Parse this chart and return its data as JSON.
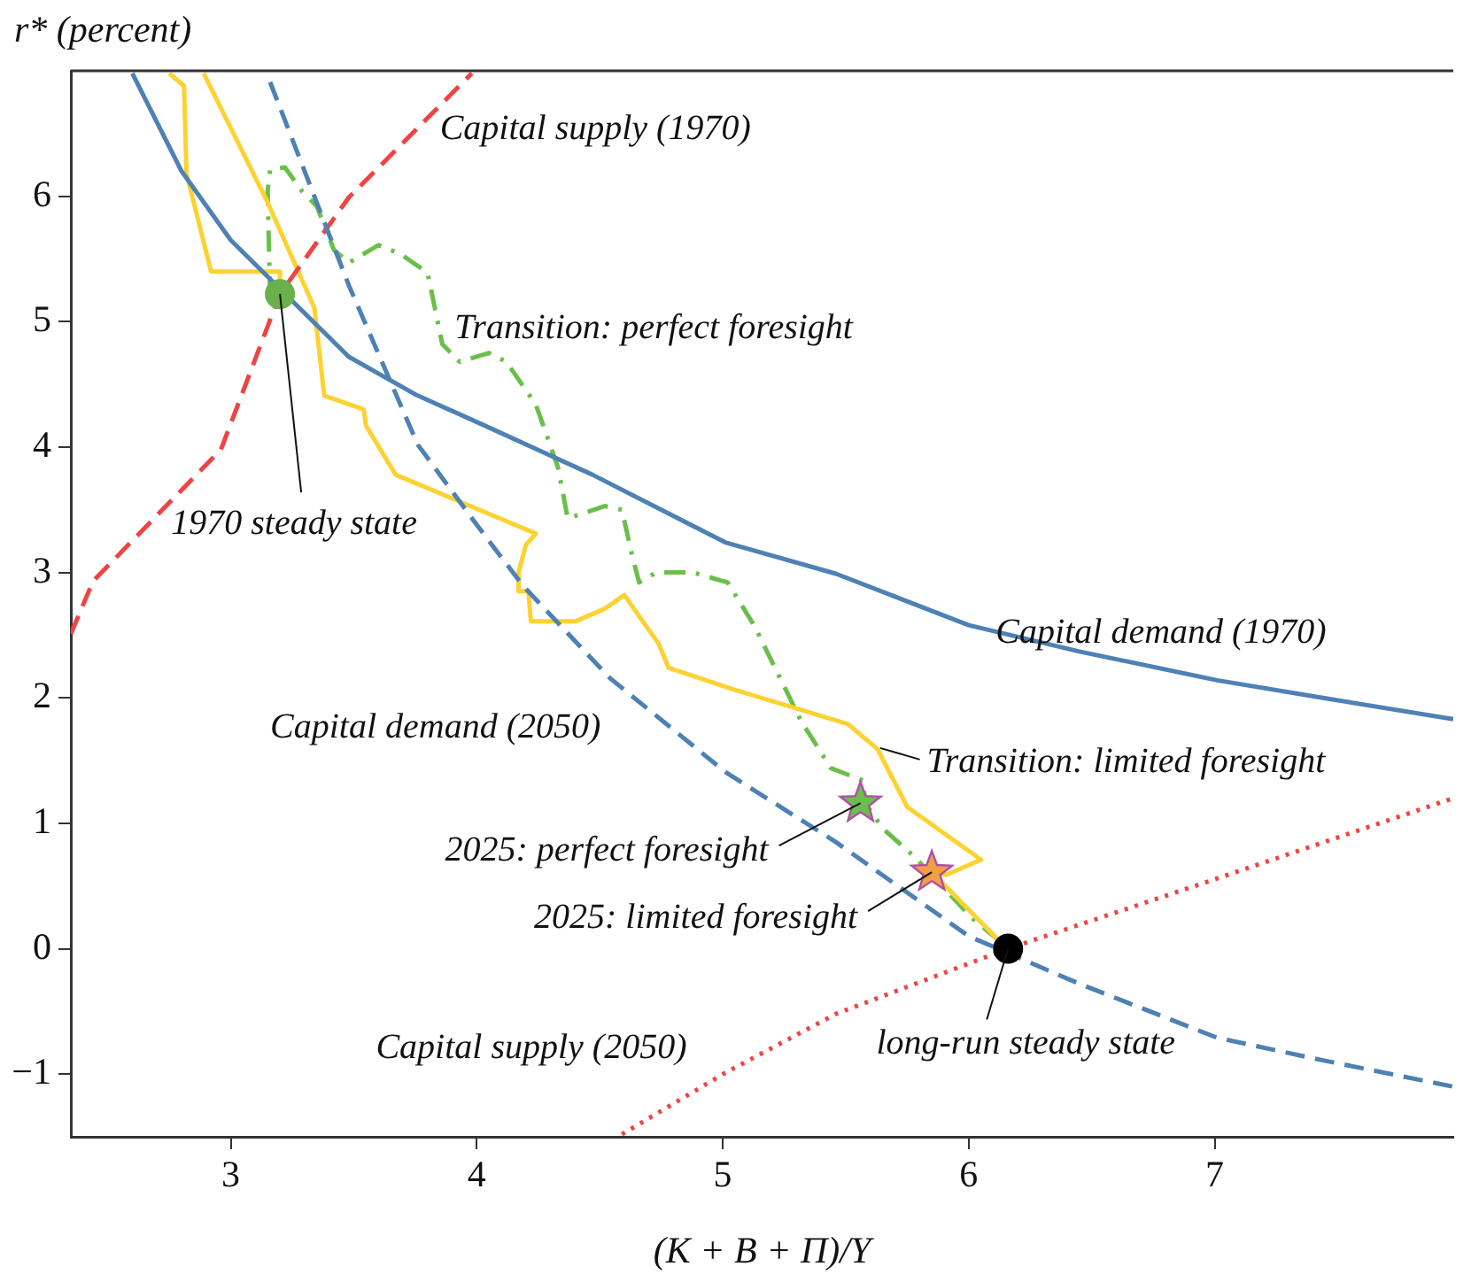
{
  "chart_data": {
    "type": "line",
    "xlabel": "(K + B + Π)/Y",
    "ylabel": "r* (percent)",
    "xlim": [
      2.35,
      7.97
    ],
    "ylim": [
      -1.5,
      7.0
    ],
    "xticks": [
      3,
      4,
      5,
      6,
      7
    ],
    "yticks": [
      -1,
      0,
      1,
      2,
      3,
      4,
      5,
      6
    ],
    "grid": false,
    "legend": false,
    "series": [
      {
        "name": "Capital demand (1970)",
        "type": "line",
        "color": "#4e81b4",
        "line_style": "solid",
        "marker": "none",
        "x": [
          2.6,
          2.8,
          3.0,
          3.48,
          3.75,
          4.0,
          4.47,
          5.01,
          5.46,
          6.0,
          6.45,
          7.01,
          7.44,
          7.97
        ],
        "values": [
          6.98,
          6.2,
          5.65,
          4.72,
          4.42,
          4.2,
          3.78,
          3.24,
          2.99,
          2.58,
          2.37,
          2.14,
          2.0,
          1.83
        ]
      },
      {
        "name": "Capital demand (2050)",
        "type": "line",
        "color": "#4e81b4",
        "line_style": "dashed",
        "marker": "none",
        "x": [
          3.16,
          3.48,
          3.76,
          4.0,
          4.19,
          4.54,
          5.01,
          5.46,
          6.0,
          6.45,
          7.01,
          7.44,
          7.97
        ],
        "values": [
          6.91,
          5.29,
          4.02,
          3.38,
          2.89,
          2.16,
          1.41,
          0.85,
          0.1,
          -0.28,
          -0.71,
          -0.89,
          -1.1
        ]
      },
      {
        "name": "Capital supply (1970)",
        "type": "line",
        "color": "#ee4444",
        "line_style": "dashed",
        "marker": "none",
        "x": [
          2.35,
          2.44,
          2.96,
          3.2,
          3.48,
          3.98
        ],
        "values": [
          2.51,
          2.93,
          3.98,
          5.22,
          5.99,
          6.98
        ]
      },
      {
        "name": "Capital supply (2050)",
        "type": "line",
        "color": "#ee4444",
        "line_style": "dotted",
        "marker": "none",
        "x": [
          4.59,
          5.01,
          5.46,
          6.16,
          7.01,
          7.97
        ],
        "values": [
          -1.48,
          -0.99,
          -0.52,
          0.0,
          0.56,
          1.2
        ]
      },
      {
        "name": "Transition: limited foresight",
        "type": "line",
        "color": "#fdd231",
        "line_style": "solid",
        "marker": "none",
        "x": [
          3.2,
          3.2,
          2.92,
          2.82,
          2.81,
          2.75,
          null,
          2.89,
          3.15,
          3.34,
          3.38,
          3.54,
          3.55,
          3.67,
          4.24,
          4.2,
          4.17,
          4.17,
          4.21,
          4.22,
          4.4,
          4.52,
          4.6,
          4.74,
          4.78,
          5.04,
          5.51,
          5.63,
          5.75,
          6.05,
          5.91,
          5.85,
          6.12,
          6.16
        ],
        "values": [
          5.29,
          5.4,
          5.4,
          6.18,
          6.88,
          6.98,
          null,
          6.98,
          5.95,
          5.11,
          4.41,
          4.3,
          4.17,
          3.78,
          3.31,
          3.22,
          3.0,
          2.85,
          2.85,
          2.61,
          2.61,
          2.71,
          2.82,
          2.43,
          2.24,
          2.07,
          1.79,
          1.59,
          1.13,
          0.71,
          0.59,
          0.61,
          0.07,
          0.0
        ]
      },
      {
        "name": "Transition: perfect foresight",
        "type": "line",
        "color": "#6abf4b",
        "line_style": "dashdot",
        "marker": "none",
        "x": [
          3.16,
          3.15,
          3.16,
          3.22,
          3.29,
          3.35,
          3.42,
          3.48,
          3.6,
          3.69,
          3.8,
          3.86,
          3.93,
          4.05,
          4.12,
          4.24,
          4.33,
          4.37,
          4.52,
          4.59,
          4.63,
          4.66,
          4.73,
          4.88,
          5.02,
          5.13,
          5.25,
          5.32,
          5.44,
          5.57,
          5.58,
          5.65,
          5.77,
          5.84,
          6.01,
          6.12,
          6.16
        ],
        "values": [
          5.19,
          6.04,
          6.21,
          6.23,
          6.04,
          5.92,
          5.57,
          5.47,
          5.61,
          5.54,
          5.39,
          4.82,
          4.68,
          4.75,
          4.68,
          4.34,
          3.84,
          3.43,
          3.53,
          3.5,
          3.15,
          2.92,
          3.0,
          3.0,
          2.92,
          2.57,
          2.09,
          1.81,
          1.44,
          1.34,
          1.16,
          0.96,
          0.75,
          0.61,
          0.25,
          0.07,
          0.0
        ]
      },
      {
        "type": "scatter",
        "color": "#6ab04c",
        "marker": "circle",
        "x": [
          3.2
        ],
        "values": [
          5.22
        ]
      },
      {
        "type": "scatter",
        "color": "#6abf4b",
        "marker": "star",
        "x": [
          5.56
        ],
        "values": [
          1.16
        ]
      },
      {
        "type": "scatter",
        "color": "#f0a040",
        "marker": "star",
        "x": [
          5.85
        ],
        "values": [
          0.61
        ]
      },
      {
        "type": "scatter",
        "color": "#000000",
        "marker": "circle",
        "x": [
          6.16
        ],
        "values": [
          0.0
        ]
      }
    ],
    "annotations": [
      {
        "text": "1970 steady state",
        "x": 3.2,
        "y": 5.22
      },
      {
        "text": "2025: perfect foresight",
        "x": 5.56,
        "y": 1.16
      },
      {
        "text": "2025: limited foresight",
        "x": 5.85,
        "y": 0.61
      },
      {
        "text": "long-run steady state",
        "x": 6.16,
        "y": 0.0
      }
    ]
  }
}
